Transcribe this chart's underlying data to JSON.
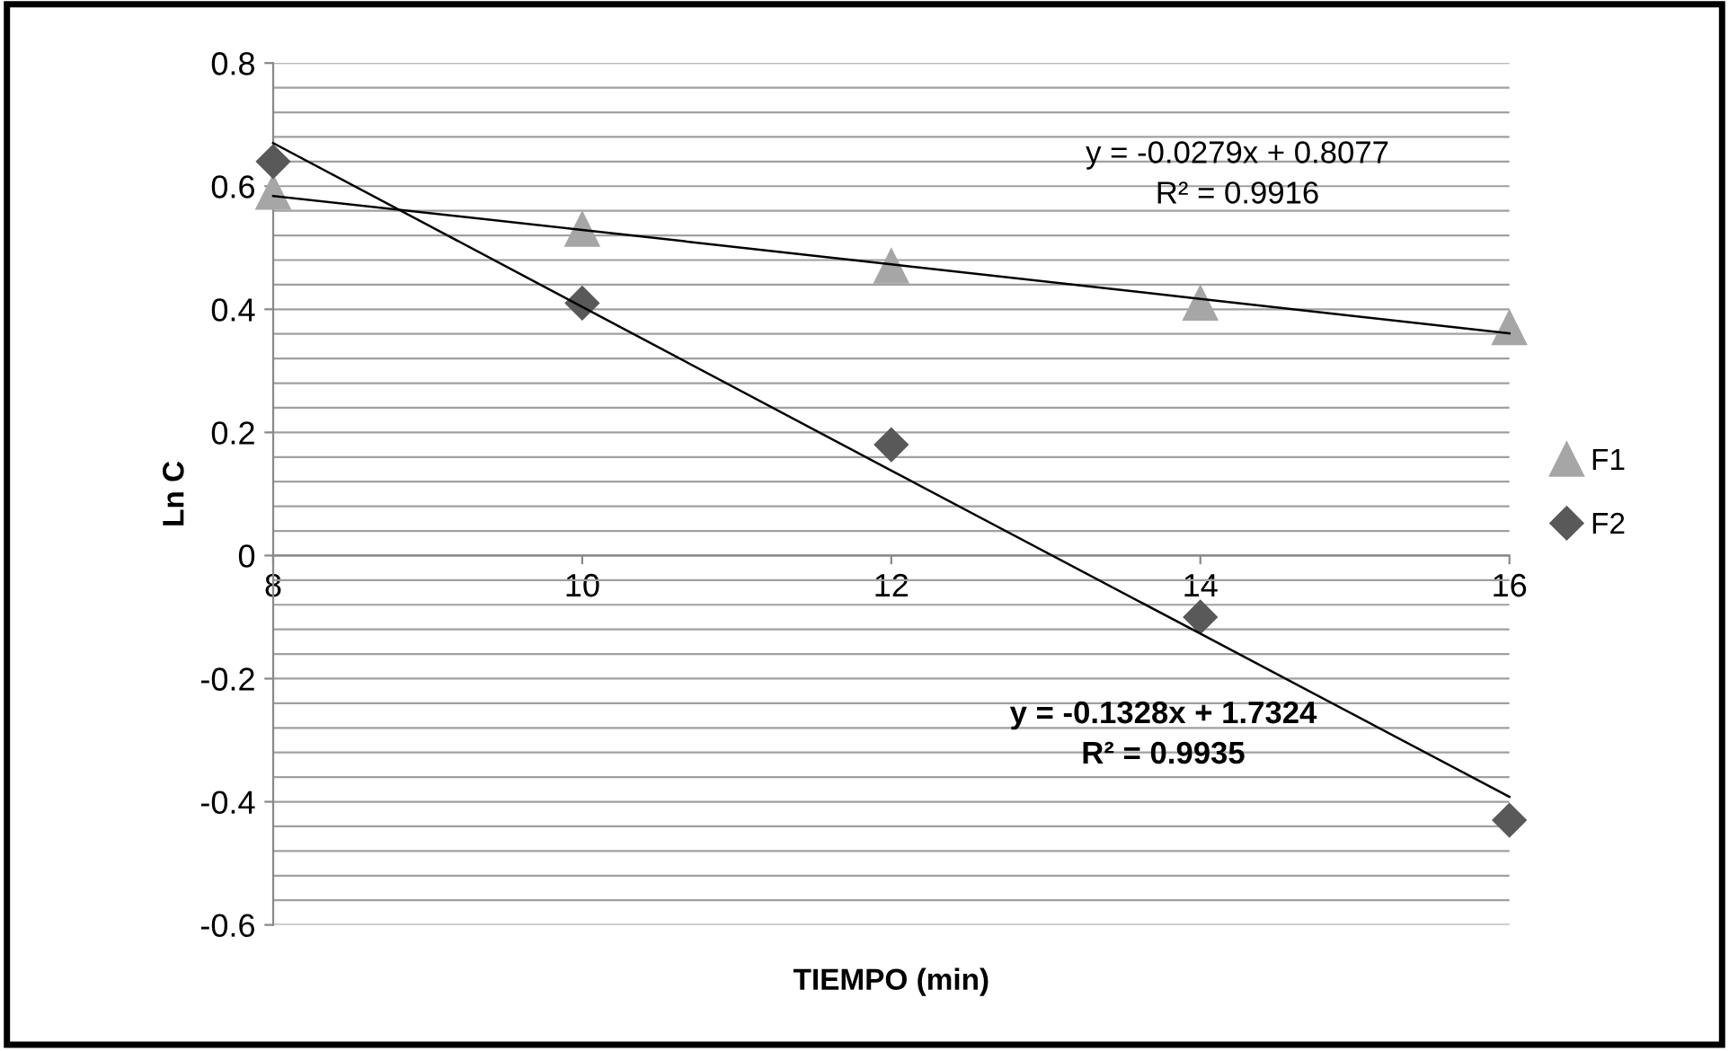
{
  "chart_data": {
    "type": "scatter",
    "xlabel": "TIEMPO (min)",
    "ylabel": "Ln C",
    "x": [
      8,
      10,
      12,
      14,
      16
    ],
    "series": [
      {
        "name": "F1",
        "color": "#a6a6a6",
        "marker": "triangle",
        "values": [
          0.59,
          0.53,
          0.47,
          0.41,
          0.37
        ]
      },
      {
        "name": "F2",
        "color": "#595959",
        "marker": "diamond",
        "values": [
          0.64,
          0.41,
          0.18,
          -0.1,
          -0.43
        ]
      },
      {
        "type": "line",
        "color": "#000000",
        "values": [
          0.584,
          0.529,
          0.473,
          0.417,
          0.361
        ]
      },
      {
        "type": "line",
        "color": "#000000",
        "values": [
          0.67,
          0.404,
          0.138,
          -0.127,
          -0.392
        ]
      }
    ],
    "annotations": [
      "y = -0.0279x + 0.8077\nR² = 0.9916",
      "y = -0.1328x + 1.7324\nR² = 0.9935"
    ],
    "xlim": [
      8,
      16
    ],
    "xticks": [
      8,
      10,
      12,
      14,
      16
    ],
    "ylim": [
      -0.6,
      0.8
    ],
    "yticks": [
      -0.6,
      {
        "value": -0.56,
        "label": null
      },
      {
        "value": -0.52,
        "label": null
      },
      {
        "value": -0.48,
        "label": null
      },
      {
        "value": -0.44,
        "label": null
      },
      -0.4,
      {
        "value": -0.36,
        "label": null
      },
      {
        "value": -0.32,
        "label": null
      },
      {
        "value": -0.28,
        "label": null
      },
      {
        "value": -0.24,
        "label": null
      },
      -0.2,
      {
        "value": -0.16,
        "label": null
      },
      {
        "value": -0.12,
        "label": null
      },
      {
        "value": -0.08,
        "label": null
      },
      {
        "value": -0.04,
        "label": null
      },
      0,
      {
        "value": 0.04,
        "label": null
      },
      {
        "value": 0.08,
        "label": null
      },
      {
        "value": 0.12,
        "label": null
      },
      {
        "value": 0.16,
        "label": null
      },
      0.2,
      {
        "value": 0.24,
        "label": null
      },
      {
        "value": 0.28,
        "label": null
      },
      {
        "value": 0.32,
        "label": null
      },
      {
        "value": 0.36,
        "label": null
      },
      0.4,
      {
        "value": 0.44,
        "label": null
      },
      {
        "value": 0.48,
        "label": null
      },
      {
        "value": 0.52,
        "label": null
      },
      {
        "value": 0.56,
        "label": null
      },
      0.6,
      {
        "value": 0.64,
        "label": null
      },
      {
        "value": 0.68,
        "label": null
      },
      {
        "value": 0.72,
        "label": null
      },
      {
        "value": 0.76,
        "label": null
      },
      0.8
    ],
    "grid": "y",
    "legend": "right"
  }
}
